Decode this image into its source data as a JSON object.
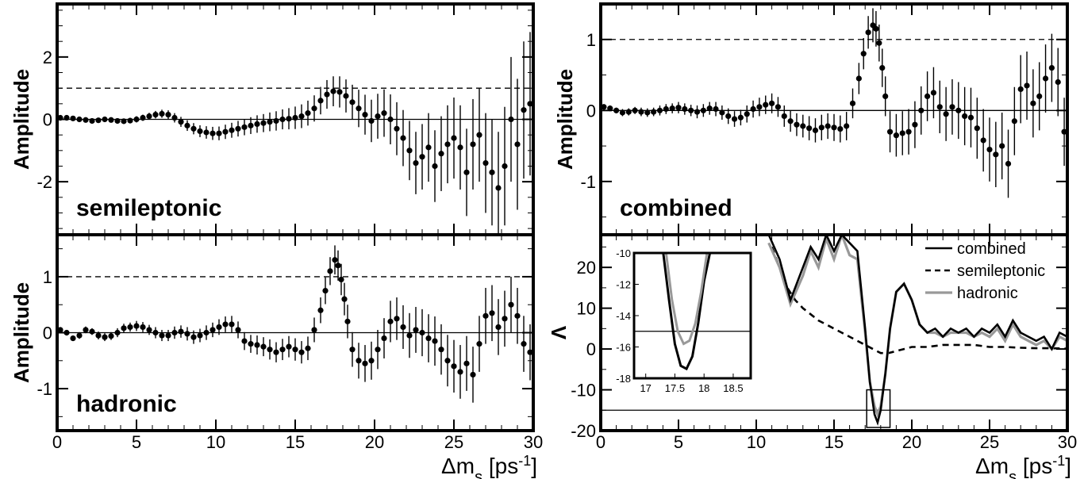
{
  "chart_data": [
    {
      "type": "scatter",
      "panel": "semileptonic",
      "label": "semileptonic",
      "ylabel": "Amplitude",
      "xlim": [
        0,
        30
      ],
      "ylim": [
        -3.7,
        3.7
      ],
      "yticks": [
        -2,
        0,
        2
      ],
      "xticks": [],
      "reference_lines": [
        1,
        0
      ],
      "x": [
        0.2,
        0.6,
        1.0,
        1.4,
        1.8,
        2.2,
        2.6,
        3.0,
        3.4,
        3.8,
        4.2,
        4.6,
        5.0,
        5.4,
        5.8,
        6.2,
        6.6,
        7.0,
        7.4,
        7.8,
        8.2,
        8.6,
        9.0,
        9.4,
        9.8,
        10.2,
        10.6,
        11.0,
        11.4,
        11.8,
        12.2,
        12.6,
        13.0,
        13.4,
        13.8,
        14.2,
        14.6,
        15.0,
        15.4,
        15.8,
        16.2,
        16.6,
        17.0,
        17.4,
        17.8,
        18.2,
        18.6,
        19.0,
        19.4,
        19.8,
        20.2,
        20.6,
        21.0,
        21.4,
        21.8,
        22.2,
        22.6,
        23.0,
        23.4,
        23.8,
        24.2,
        24.6,
        25.0,
        25.4,
        25.8,
        26.2,
        26.6,
        27.0,
        27.4,
        27.8,
        28.2,
        28.6,
        29.0,
        29.4,
        29.8
      ],
      "y": [
        0.05,
        0.05,
        0.03,
        0.0,
        -0.02,
        -0.05,
        -0.03,
        0.0,
        -0.02,
        -0.05,
        -0.06,
        -0.04,
        0.0,
        0.05,
        0.1,
        0.15,
        0.18,
        0.15,
        0.05,
        -0.08,
        -0.2,
        -0.3,
        -0.38,
        -0.42,
        -0.45,
        -0.45,
        -0.4,
        -0.35,
        -0.3,
        -0.25,
        -0.2,
        -0.15,
        -0.12,
        -0.08,
        -0.05,
        0.0,
        0.02,
        0.05,
        0.1,
        0.2,
        0.35,
        0.6,
        0.8,
        0.9,
        0.88,
        0.75,
        0.55,
        0.35,
        0.15,
        -0.05,
        0.1,
        0.2,
        0.0,
        -0.3,
        -0.6,
        -1.0,
        -1.4,
        -1.2,
        -0.9,
        -1.5,
        -1.1,
        -0.8,
        -0.6,
        -0.9,
        -1.7,
        -0.8,
        -0.5,
        -1.4,
        -1.7,
        -2.2,
        -1.5,
        0.0,
        -0.8,
        0.3,
        0.5
      ],
      "yerr": [
        0.05,
        0.05,
        0.05,
        0.05,
        0.06,
        0.06,
        0.06,
        0.07,
        0.07,
        0.08,
        0.08,
        0.09,
        0.1,
        0.1,
        0.11,
        0.12,
        0.13,
        0.14,
        0.15,
        0.16,
        0.17,
        0.18,
        0.19,
        0.2,
        0.21,
        0.22,
        0.23,
        0.24,
        0.25,
        0.26,
        0.27,
        0.28,
        0.29,
        0.3,
        0.31,
        0.32,
        0.34,
        0.36,
        0.38,
        0.4,
        0.42,
        0.44,
        0.46,
        0.48,
        0.5,
        0.53,
        0.56,
        0.6,
        0.64,
        0.68,
        0.72,
        0.76,
        0.8,
        0.85,
        0.9,
        0.95,
        1.0,
        1.05,
        1.1,
        1.15,
        1.2,
        1.25,
        1.3,
        1.35,
        1.4,
        1.45,
        1.5,
        1.6,
        1.7,
        1.8,
        1.9,
        2.0,
        2.1,
        2.2,
        2.3
      ]
    },
    {
      "type": "scatter",
      "panel": "hadronic",
      "label": "hadronic",
      "ylabel": "Amplitude",
      "xlim": [
        0,
        30
      ],
      "ylim": [
        -1.75,
        1.75
      ],
      "yticks": [
        -1,
        0,
        1
      ],
      "xticks": [
        0,
        5,
        10,
        15,
        20,
        25,
        30
      ],
      "xlabel": "Δm",
      "xlabel_sub": "s",
      "xlabel_unit": "[ps",
      "xlabel_sup": "-1",
      "xlabel_close": "]",
      "reference_lines": [
        1,
        0
      ],
      "x": [
        0.2,
        0.6,
        1.0,
        1.4,
        1.8,
        2.2,
        2.6,
        3.0,
        3.4,
        3.8,
        4.2,
        4.6,
        5.0,
        5.4,
        5.8,
        6.2,
        6.6,
        7.0,
        7.4,
        7.8,
        8.2,
        8.6,
        9.0,
        9.4,
        9.8,
        10.2,
        10.6,
        11.0,
        11.4,
        11.8,
        12.2,
        12.6,
        13.0,
        13.4,
        13.8,
        14.2,
        14.6,
        15.0,
        15.4,
        15.8,
        16.2,
        16.6,
        16.9,
        17.2,
        17.5,
        17.7,
        17.9,
        18.1,
        18.3,
        18.6,
        19.0,
        19.4,
        19.8,
        20.2,
        20.6,
        21.0,
        21.4,
        21.8,
        22.2,
        22.6,
        23.0,
        23.4,
        23.8,
        24.2,
        24.6,
        25.0,
        25.4,
        25.8,
        26.2,
        26.6,
        27.0,
        27.4,
        27.8,
        28.2,
        28.6,
        29.0,
        29.4,
        29.8
      ],
      "y": [
        0.05,
        0.0,
        -0.1,
        -0.05,
        0.05,
        0.02,
        -0.05,
        -0.08,
        -0.06,
        0.0,
        0.08,
        0.1,
        0.12,
        0.1,
        0.05,
        0.0,
        -0.05,
        -0.05,
        0.0,
        0.02,
        -0.02,
        -0.08,
        -0.05,
        0.0,
        0.05,
        0.1,
        0.15,
        0.15,
        0.05,
        -0.15,
        -0.2,
        -0.22,
        -0.25,
        -0.3,
        -0.35,
        -0.3,
        -0.25,
        -0.3,
        -0.35,
        -0.28,
        0.05,
        0.4,
        0.75,
        1.1,
        1.3,
        1.2,
        0.95,
        0.6,
        0.2,
        -0.3,
        -0.5,
        -0.55,
        -0.5,
        -0.3,
        -0.1,
        0.2,
        0.25,
        0.1,
        -0.05,
        0.05,
        0.0,
        -0.1,
        -0.15,
        -0.3,
        -0.5,
        -0.6,
        -0.7,
        -0.55,
        -0.75,
        -0.2,
        0.3,
        0.35,
        0.1,
        0.25,
        0.5,
        0.3,
        -0.2,
        -0.35
      ],
      "yerr": [
        0.05,
        0.05,
        0.05,
        0.06,
        0.06,
        0.06,
        0.07,
        0.07,
        0.07,
        0.08,
        0.08,
        0.08,
        0.09,
        0.09,
        0.09,
        0.1,
        0.1,
        0.1,
        0.11,
        0.11,
        0.12,
        0.12,
        0.12,
        0.13,
        0.13,
        0.14,
        0.14,
        0.15,
        0.15,
        0.16,
        0.16,
        0.17,
        0.17,
        0.18,
        0.18,
        0.19,
        0.19,
        0.2,
        0.2,
        0.21,
        0.22,
        0.23,
        0.24,
        0.25,
        0.26,
        0.27,
        0.28,
        0.29,
        0.3,
        0.31,
        0.32,
        0.33,
        0.34,
        0.35,
        0.36,
        0.37,
        0.38,
        0.39,
        0.4,
        0.41,
        0.42,
        0.43,
        0.44,
        0.45,
        0.46,
        0.47,
        0.48,
        0.49,
        0.5,
        0.5,
        0.5,
        0.5,
        0.5,
        0.5,
        0.5,
        0.5,
        0.5,
        0.5
      ]
    },
    {
      "type": "scatter",
      "panel": "combined",
      "label": "combined",
      "ylabel": "Amplitude",
      "xlim": [
        0,
        30
      ],
      "ylim": [
        -1.75,
        1.5
      ],
      "yticks": [
        -1,
        0,
        1
      ],
      "xticks": [],
      "reference_lines": [
        1,
        0
      ],
      "x": [
        0.2,
        0.6,
        1.0,
        1.4,
        1.8,
        2.2,
        2.6,
        3.0,
        3.4,
        3.8,
        4.2,
        4.6,
        5.0,
        5.4,
        5.8,
        6.2,
        6.6,
        7.0,
        7.4,
        7.8,
        8.2,
        8.6,
        9.0,
        9.4,
        9.8,
        10.2,
        10.6,
        11.0,
        11.4,
        11.8,
        12.2,
        12.6,
        13.0,
        13.4,
        13.8,
        14.2,
        14.6,
        15.0,
        15.4,
        15.8,
        16.2,
        16.6,
        16.9,
        17.2,
        17.5,
        17.7,
        17.9,
        18.1,
        18.3,
        18.6,
        19.0,
        19.4,
        19.8,
        20.2,
        20.6,
        21.0,
        21.4,
        21.8,
        22.2,
        22.6,
        23.0,
        23.4,
        23.8,
        24.2,
        24.6,
        25.0,
        25.4,
        25.8,
        26.2,
        26.6,
        27.0,
        27.4,
        27.8,
        28.2,
        28.6,
        29.0,
        29.4,
        29.8
      ],
      "y": [
        0.05,
        0.03,
        0.0,
        -0.03,
        -0.02,
        0.0,
        -0.02,
        -0.03,
        -0.02,
        0.0,
        0.02,
        0.03,
        0.04,
        0.02,
        0.0,
        -0.02,
        0.0,
        0.03,
        0.02,
        -0.03,
        -0.08,
        -0.12,
        -0.1,
        -0.05,
        0.02,
        0.05,
        0.08,
        0.1,
        0.05,
        -0.08,
        -0.15,
        -0.2,
        -0.22,
        -0.25,
        -0.28,
        -0.24,
        -0.22,
        -0.24,
        -0.26,
        -0.22,
        0.1,
        0.45,
        0.8,
        1.1,
        1.2,
        1.15,
        0.95,
        0.6,
        0.2,
        -0.3,
        -0.35,
        -0.32,
        -0.3,
        -0.2,
        0.0,
        0.2,
        0.25,
        0.05,
        -0.05,
        0.05,
        0.0,
        -0.08,
        -0.1,
        -0.25,
        -0.42,
        -0.55,
        -0.62,
        -0.5,
        -0.75,
        -0.15,
        0.3,
        0.35,
        0.1,
        0.2,
        0.45,
        0.6,
        0.4,
        -0.3
      ],
      "yerr": [
        0.04,
        0.04,
        0.04,
        0.05,
        0.05,
        0.05,
        0.06,
        0.06,
        0.06,
        0.07,
        0.07,
        0.07,
        0.08,
        0.08,
        0.08,
        0.09,
        0.09,
        0.09,
        0.1,
        0.1,
        0.11,
        0.11,
        0.11,
        0.12,
        0.12,
        0.13,
        0.13,
        0.14,
        0.14,
        0.15,
        0.15,
        0.16,
        0.16,
        0.17,
        0.17,
        0.18,
        0.18,
        0.19,
        0.19,
        0.2,
        0.21,
        0.22,
        0.22,
        0.23,
        0.24,
        0.25,
        0.26,
        0.27,
        0.28,
        0.29,
        0.3,
        0.31,
        0.32,
        0.33,
        0.34,
        0.35,
        0.36,
        0.37,
        0.38,
        0.39,
        0.4,
        0.41,
        0.42,
        0.43,
        0.44,
        0.45,
        0.46,
        0.47,
        0.48,
        0.48,
        0.48,
        0.48,
        0.48,
        0.48,
        0.48,
        0.48,
        0.48,
        0.48
      ]
    },
    {
      "type": "line",
      "panel": "likelihood",
      "ylabel": "Λ",
      "xlim": [
        0,
        30
      ],
      "ylim": [
        -20,
        28
      ],
      "yticks": [
        -20,
        -10,
        0,
        10,
        20
      ],
      "xticks": [
        0,
        5,
        10,
        15,
        20,
        25,
        30
      ],
      "xlabel": "Δm",
      "xlabel_sub": "s",
      "xlabel_unit": "[ps",
      "xlabel_sup": "-1",
      "xlabel_close": "]",
      "reference_lines": [
        -15
      ],
      "legend_position": "top-right",
      "series": [
        {
          "name": "combined",
          "color": "#000000",
          "style": "solid",
          "x": [
            10.8,
            11.5,
            12.2,
            13.0,
            13.5,
            14.0,
            14.5,
            15.0,
            15.5,
            16.0,
            16.5,
            17.0,
            17.3,
            17.6,
            17.8,
            18.0,
            18.3,
            18.6,
            19.0,
            19.5,
            20.0,
            20.5,
            21.0,
            21.5,
            22.0,
            22.5,
            23.0,
            23.5,
            24.0,
            24.5,
            25.0,
            25.5,
            26.0,
            26.5,
            27.0,
            27.5,
            28.0,
            28.5,
            29.0,
            29.5,
            30.0
          ],
          "y": [
            28,
            22,
            12,
            20,
            25,
            22,
            28,
            24,
            28,
            26,
            24,
            5,
            -8,
            -16,
            -18,
            -15,
            -6,
            5,
            14,
            16,
            12,
            6,
            4,
            5,
            3,
            5,
            4,
            5,
            3,
            5,
            4,
            6,
            3,
            7,
            4,
            3,
            2,
            3,
            0,
            4,
            3
          ]
        },
        {
          "name": "semileptonic",
          "color": "#000000",
          "style": "dashed",
          "x": [
            11.0,
            11.5,
            12.0,
            12.5,
            13.0,
            13.5,
            14.0,
            14.5,
            15.0,
            15.5,
            16.0,
            16.5,
            17.0,
            17.5,
            18.0,
            18.5,
            19.0,
            19.5,
            20.0,
            21.0,
            22.0,
            23.0,
            24.0,
            25.0,
            26.0,
            27.0,
            28.0,
            29.0,
            30.0
          ],
          "y": [
            25,
            20,
            15,
            12,
            10,
            8.5,
            7,
            6,
            5,
            4,
            3,
            2,
            1,
            0,
            -1,
            -1,
            -0.5,
            0,
            0.5,
            0.5,
            1,
            1,
            1,
            0.5,
            0.5,
            0.3,
            0.2,
            0.2,
            0.1
          ]
        },
        {
          "name": "hadronic",
          "color": "#999999",
          "style": "solid",
          "x": [
            10.8,
            11.5,
            12.2,
            13.0,
            13.5,
            14.0,
            14.5,
            15.0,
            15.5,
            16.0,
            16.5,
            17.0,
            17.3,
            17.6,
            17.8,
            18.0,
            18.3,
            18.6,
            19.0,
            19.5,
            20.0,
            20.5,
            21.0,
            21.5,
            22.0,
            22.5,
            23.0,
            23.5,
            24.0,
            24.5,
            25.0,
            25.5,
            26.0,
            26.5,
            27.0,
            27.5,
            28.0,
            28.5,
            29.0,
            29.5,
            30.0
          ],
          "y": [
            26,
            20,
            11,
            18,
            24,
            20,
            27,
            22,
            28,
            23,
            22,
            4,
            -8,
            -14,
            -16,
            -14,
            -6,
            5,
            14,
            16,
            12,
            6,
            4,
            4,
            3,
            4,
            4,
            4,
            3,
            4,
            3,
            5,
            2,
            6,
            3,
            2,
            1,
            2,
            0,
            3,
            2
          ]
        }
      ]
    },
    {
      "type": "line",
      "panel": "likelihood-inset",
      "xlim": [
        16.8,
        18.8
      ],
      "ylim": [
        -18,
        -10
      ],
      "xticks": [
        17,
        17.5,
        18,
        18.5
      ],
      "yticks": [
        -18,
        -16,
        -14,
        -12,
        -10
      ],
      "reference_lines": [
        -15
      ],
      "series": [
        {
          "name": "combined",
          "color": "#000000",
          "x": [
            17.3,
            17.4,
            17.5,
            17.6,
            17.7,
            17.8,
            17.9,
            18.0,
            18.1
          ],
          "y": [
            -10,
            -13,
            -15.8,
            -17.2,
            -17.4,
            -16.6,
            -14.5,
            -11.8,
            -10
          ]
        },
        {
          "name": "hadronic",
          "color": "#999999",
          "x": [
            17.35,
            17.45,
            17.55,
            17.65,
            17.75,
            17.85,
            17.95,
            18.05
          ],
          "y": [
            -10,
            -13,
            -15,
            -15.8,
            -15.6,
            -14.5,
            -12.5,
            -10
          ]
        }
      ]
    }
  ]
}
